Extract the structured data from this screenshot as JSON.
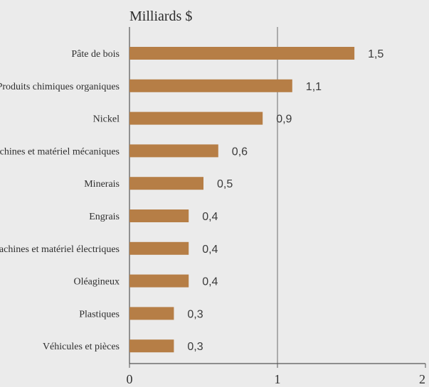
{
  "chart_data": {
    "type": "bar",
    "orientation": "horizontal",
    "ylabel": "Milliards $",
    "categories": [
      "Pâte de bois",
      "Produits chimiques organiques",
      "Nickel",
      "Machines et matériel mécaniques",
      "Minerais",
      "Engrais",
      "Machines et matériel électriques",
      "Oléagineux",
      "Plastiques",
      "Véhicules et pièces"
    ],
    "values": [
      1.52,
      1.1,
      0.9,
      0.6,
      0.5,
      0.4,
      0.4,
      0.4,
      0.3,
      0.3
    ],
    "value_labels": [
      "1,5",
      "1,1",
      "0,9",
      "0,6",
      "0,5",
      "0,4",
      "0,4",
      "0,4",
      "0,3",
      "0,3"
    ],
    "xlim": [
      0,
      2
    ],
    "xticks": [
      0,
      1,
      2
    ],
    "xtick_labels": [
      "0",
      "1",
      "2"
    ],
    "grid": "vertical line at 1",
    "bar_color": "#b67e46",
    "background_color": "#ebebeb",
    "axis_color": "#555555"
  }
}
